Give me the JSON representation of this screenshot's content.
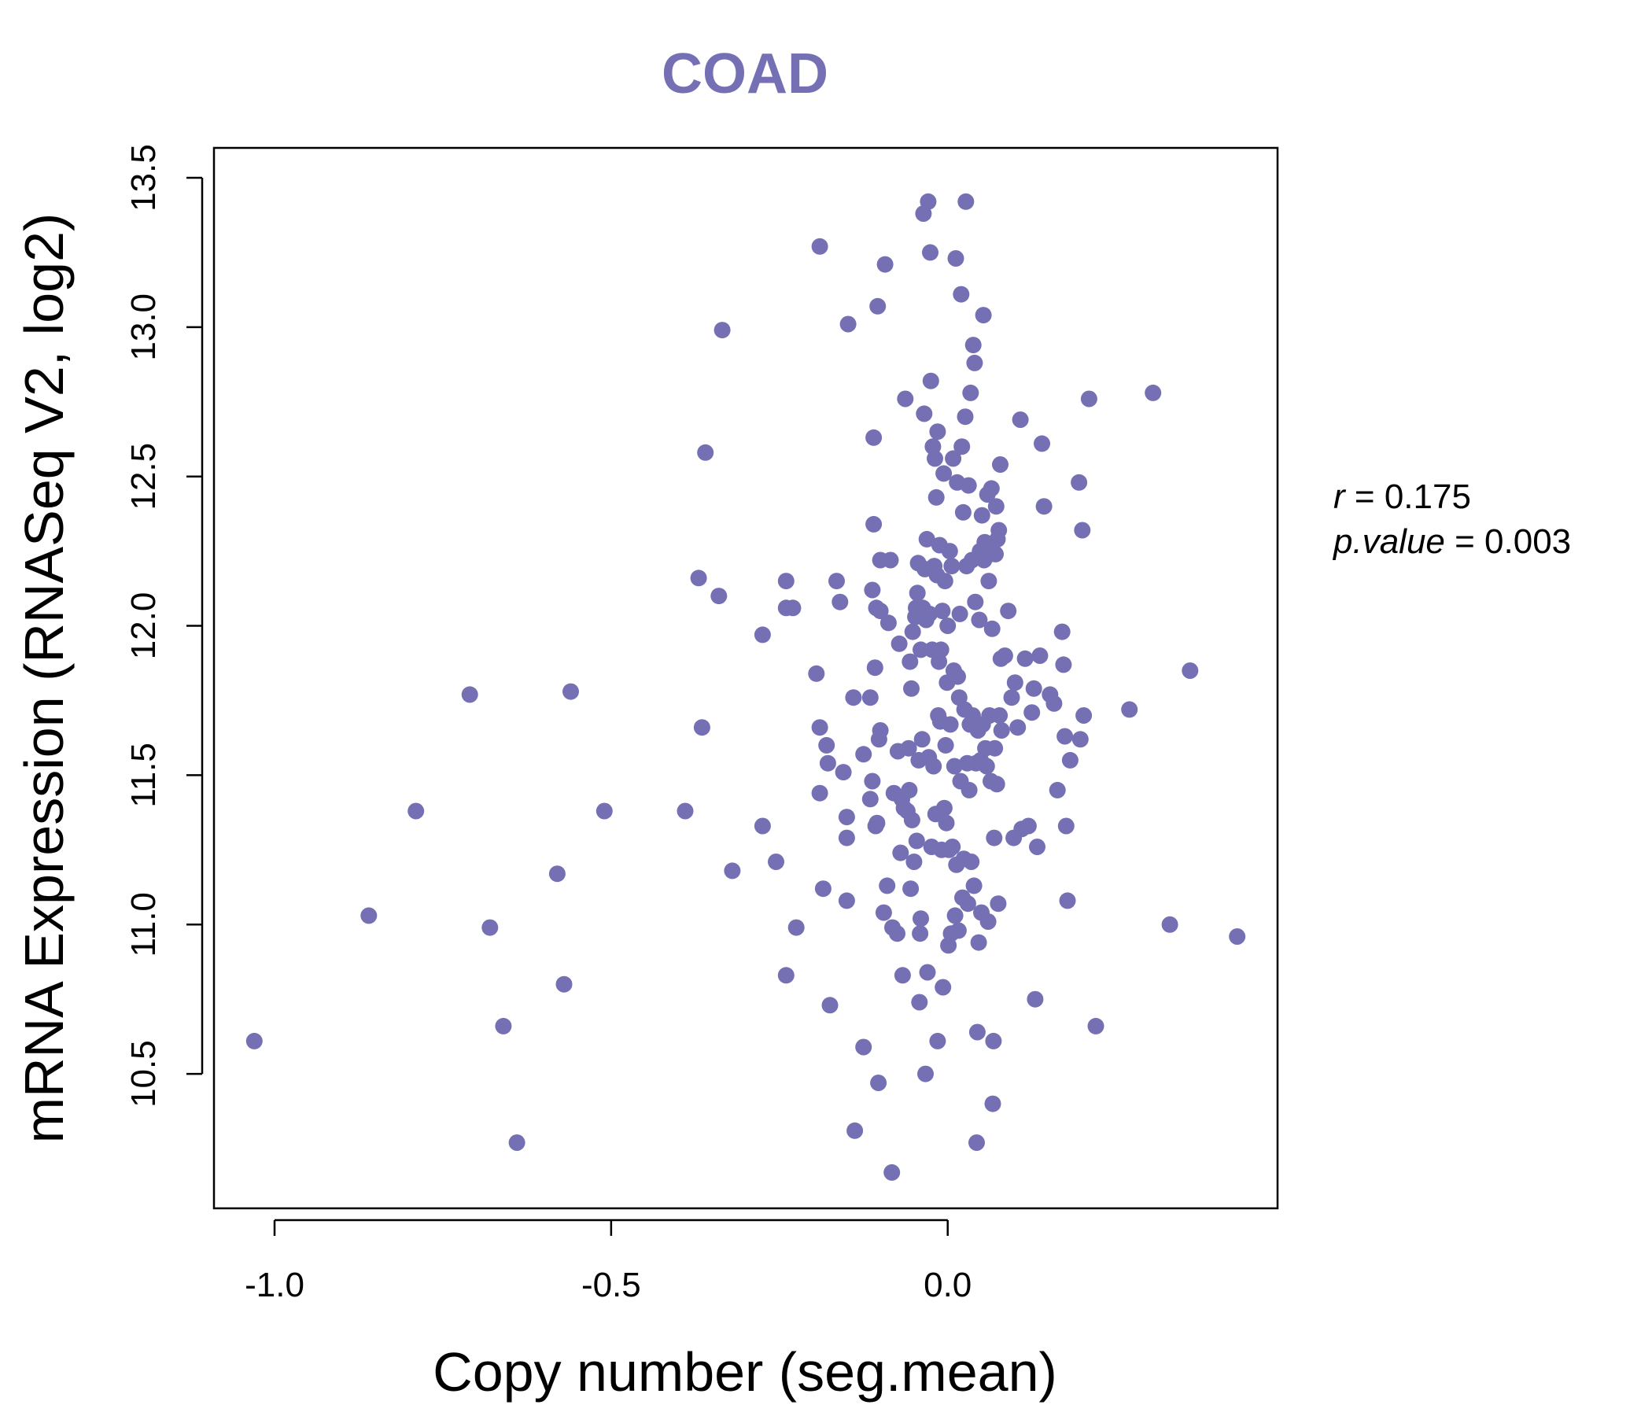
{
  "chart_data": {
    "type": "scatter",
    "title": "COAD",
    "xlabel": "Copy number (seg.mean)",
    "ylabel": "mRNA Expression (RNASeq V2, log2)",
    "xlim": [
      -1.09,
      0.49
    ],
    "ylim": [
      10.05,
      13.6
    ],
    "x_ticks": [
      -1.0,
      -0.5,
      0.0
    ],
    "x_tick_labels": [
      "-1.0",
      "-0.5",
      "0.0"
    ],
    "y_ticks": [
      10.5,
      11.0,
      11.5,
      12.0,
      12.5,
      13.0,
      13.5
    ],
    "y_tick_labels": [
      "10.5",
      "11.0",
      "11.5",
      "12.0",
      "12.5",
      "13.0",
      "13.5"
    ],
    "grid": false,
    "point_color": "#7570B3",
    "stats": {
      "r_label": "r",
      "r_value": "0.175",
      "p_label": "p.value",
      "p_value": "0.003"
    },
    "points": [
      [
        -1.03,
        10.61
      ],
      [
        -0.86,
        11.03
      ],
      [
        -0.79,
        11.38
      ],
      [
        -0.71,
        11.77
      ],
      [
        -0.68,
        10.99
      ],
      [
        -0.66,
        10.66
      ],
      [
        -0.64,
        10.27
      ],
      [
        -0.58,
        11.17
      ],
      [
        -0.57,
        10.8
      ],
      [
        -0.56,
        11.78
      ],
      [
        -0.51,
        11.38
      ],
      [
        -0.39,
        11.38
      ],
      [
        -0.37,
        12.16
      ],
      [
        -0.365,
        11.66
      ],
      [
        -0.36,
        12.58
      ],
      [
        -0.34,
        12.1
      ],
      [
        -0.335,
        12.99
      ],
      [
        -0.32,
        11.18
      ],
      [
        -0.275,
        11.33
      ],
      [
        -0.275,
        11.97
      ],
      [
        -0.255,
        11.21
      ],
      [
        -0.24,
        10.83
      ],
      [
        -0.24,
        12.06
      ],
      [
        -0.24,
        12.15
      ],
      [
        -0.23,
        12.06
      ],
      [
        -0.225,
        10.99
      ],
      [
        -0.195,
        11.84
      ],
      [
        -0.19,
        11.66
      ],
      [
        -0.19,
        11.44
      ],
      [
        -0.19,
        13.27
      ],
      [
        -0.185,
        11.12
      ],
      [
        -0.18,
        11.6
      ],
      [
        -0.178,
        11.54
      ],
      [
        -0.175,
        10.73
      ],
      [
        -0.165,
        12.15
      ],
      [
        -0.16,
        12.08
      ],
      [
        -0.155,
        11.51
      ],
      [
        -0.15,
        11.36
      ],
      [
        -0.15,
        11.29
      ],
      [
        -0.15,
        11.08
      ],
      [
        -0.148,
        13.01
      ],
      [
        -0.14,
        11.76
      ],
      [
        -0.138,
        10.31
      ],
      [
        -0.125,
        11.57
      ],
      [
        -0.125,
        10.59
      ],
      [
        -0.115,
        11.76
      ],
      [
        -0.115,
        11.42
      ],
      [
        -0.112,
        11.48
      ],
      [
        -0.112,
        12.12
      ],
      [
        -0.11,
        12.34
      ],
      [
        -0.11,
        12.63
      ],
      [
        -0.108,
        11.86
      ],
      [
        -0.107,
        11.33
      ],
      [
        -0.106,
        12.06
      ],
      [
        -0.105,
        11.34
      ],
      [
        -0.104,
        13.07
      ],
      [
        -0.103,
        10.47
      ],
      [
        -0.102,
        11.62
      ],
      [
        -0.1,
        12.05
      ],
      [
        -0.1,
        12.22
      ],
      [
        -0.1,
        11.65
      ],
      [
        -0.095,
        11.04
      ],
      [
        -0.093,
        13.21
      ],
      [
        -0.09,
        11.13
      ],
      [
        -0.088,
        12.01
      ],
      [
        -0.085,
        12.22
      ],
      [
        -0.083,
        10.17
      ],
      [
        -0.082,
        10.99
      ],
      [
        -0.08,
        11.44
      ],
      [
        -0.075,
        10.97
      ],
      [
        -0.074,
        11.58
      ],
      [
        -0.072,
        11.94
      ],
      [
        -0.07,
        11.24
      ],
      [
        -0.068,
        11.42
      ],
      [
        -0.067,
        10.83
      ],
      [
        -0.065,
        11.39
      ],
      [
        -0.063,
        12.76
      ],
      [
        -0.06,
        11.38
      ],
      [
        -0.058,
        11.59
      ],
      [
        -0.057,
        11.45
      ],
      [
        -0.056,
        11.88
      ],
      [
        -0.055,
        11.12
      ],
      [
        -0.054,
        11.79
      ],
      [
        -0.053,
        11.35
      ],
      [
        -0.052,
        11.98
      ],
      [
        -0.05,
        11.21
      ],
      [
        -0.048,
        12.03
      ],
      [
        -0.047,
        12.06
      ],
      [
        -0.046,
        11.28
      ],
      [
        -0.045,
        12.11
      ],
      [
        -0.044,
        12.21
      ],
      [
        -0.043,
        11.55
      ],
      [
        -0.042,
        10.74
      ],
      [
        -0.041,
        10.97
      ],
      [
        -0.04,
        11.02
      ],
      [
        -0.04,
        11.92
      ],
      [
        -0.038,
        11.62
      ],
      [
        -0.037,
        12.06
      ],
      [
        -0.036,
        13.38
      ],
      [
        -0.035,
        12.71
      ],
      [
        -0.034,
        12.19
      ],
      [
        -0.033,
        10.5
      ],
      [
        -0.032,
        12.02
      ],
      [
        -0.031,
        12.29
      ],
      [
        -0.03,
        10.84
      ],
      [
        -0.029,
        13.42
      ],
      [
        -0.028,
        11.56
      ],
      [
        -0.027,
        12.04
      ],
      [
        -0.026,
        13.25
      ],
      [
        -0.025,
        12.82
      ],
      [
        -0.024,
        11.26
      ],
      [
        -0.023,
        11.92
      ],
      [
        -0.022,
        12.6
      ],
      [
        -0.021,
        11.53
      ],
      [
        -0.02,
        12.2
      ],
      [
        -0.019,
        12.56
      ],
      [
        -0.018,
        11.37
      ],
      [
        -0.017,
        12.43
      ],
      [
        -0.016,
        12.17
      ],
      [
        -0.015,
        12.65
      ],
      [
        -0.015,
        10.61
      ],
      [
        -0.014,
        11.7
      ],
      [
        -0.013,
        11.88
      ],
      [
        -0.012,
        12.27
      ],
      [
        -0.011,
        11.68
      ],
      [
        -0.01,
        11.92
      ],
      [
        -0.009,
        11.25
      ],
      [
        -0.008,
        12.05
      ],
      [
        -0.007,
        10.79
      ],
      [
        -0.006,
        12.51
      ],
      [
        -0.005,
        11.39
      ],
      [
        -0.004,
        12.15
      ],
      [
        -0.003,
        11.6
      ],
      [
        -0.002,
        11.34
      ],
      [
        -0.001,
        11.81
      ],
      [
        0.0,
        12.0
      ],
      [
        0.001,
        10.93
      ],
      [
        0.002,
        11.25
      ],
      [
        0.003,
        12.25
      ],
      [
        0.004,
        11.67
      ],
      [
        0.005,
        10.97
      ],
      [
        0.006,
        12.2
      ],
      [
        0.007,
        11.26
      ],
      [
        0.008,
        12.56
      ],
      [
        0.009,
        11.85
      ],
      [
        0.01,
        11.53
      ],
      [
        0.011,
        11.03
      ],
      [
        0.012,
        13.23
      ],
      [
        0.013,
        11.2
      ],
      [
        0.014,
        12.48
      ],
      [
        0.015,
        11.83
      ],
      [
        0.016,
        10.98
      ],
      [
        0.017,
        11.76
      ],
      [
        0.018,
        12.04
      ],
      [
        0.019,
        11.48
      ],
      [
        0.02,
        13.11
      ],
      [
        0.021,
        12.6
      ],
      [
        0.022,
        11.09
      ],
      [
        0.023,
        12.38
      ],
      [
        0.024,
        11.22
      ],
      [
        0.025,
        11.72
      ],
      [
        0.026,
        12.7
      ],
      [
        0.027,
        13.42
      ],
      [
        0.028,
        12.2
      ],
      [
        0.029,
        11.54
      ],
      [
        0.03,
        11.07
      ],
      [
        0.031,
        12.47
      ],
      [
        0.032,
        11.45
      ],
      [
        0.033,
        11.67
      ],
      [
        0.034,
        12.78
      ],
      [
        0.035,
        11.21
      ],
      [
        0.036,
        12.22
      ],
      [
        0.037,
        11.7
      ],
      [
        0.038,
        12.94
      ],
      [
        0.039,
        11.13
      ],
      [
        0.04,
        12.88
      ],
      [
        0.041,
        12.08
      ],
      [
        0.042,
        11.54
      ],
      [
        0.043,
        10.27
      ],
      [
        0.044,
        10.64
      ],
      [
        0.045,
        11.65
      ],
      [
        0.046,
        10.94
      ],
      [
        0.047,
        12.02
      ],
      [
        0.048,
        12.25
      ],
      [
        0.049,
        11.55
      ],
      [
        0.05,
        11.04
      ],
      [
        0.051,
        12.37
      ],
      [
        0.052,
        11.67
      ],
      [
        0.053,
        13.04
      ],
      [
        0.054,
        12.22
      ],
      [
        0.055,
        12.28
      ],
      [
        0.056,
        11.59
      ],
      [
        0.057,
        12.26
      ],
      [
        0.058,
        11.53
      ],
      [
        0.059,
        12.44
      ],
      [
        0.06,
        11.01
      ],
      [
        0.061,
        12.15
      ],
      [
        0.062,
        11.7
      ],
      [
        0.063,
        12.24
      ],
      [
        0.064,
        11.48
      ],
      [
        0.065,
        12.46
      ],
      [
        0.066,
        11.99
      ],
      [
        0.067,
        10.4
      ],
      [
        0.068,
        10.61
      ],
      [
        0.069,
        11.29
      ],
      [
        0.07,
        11.59
      ],
      [
        0.071,
        12.24
      ],
      [
        0.072,
        12.4
      ],
      [
        0.073,
        11.47
      ],
      [
        0.074,
        12.29
      ],
      [
        0.075,
        11.07
      ],
      [
        0.076,
        12.32
      ],
      [
        0.077,
        11.7
      ],
      [
        0.078,
        12.54
      ],
      [
        0.079,
        11.89
      ],
      [
        0.08,
        11.65
      ],
      [
        0.085,
        11.9
      ],
      [
        0.09,
        12.05
      ],
      [
        0.095,
        11.76
      ],
      [
        0.098,
        11.29
      ],
      [
        0.1,
        11.81
      ],
      [
        0.104,
        11.66
      ],
      [
        0.108,
        12.69
      ],
      [
        0.11,
        11.32
      ],
      [
        0.115,
        11.89
      ],
      [
        0.12,
        11.33
      ],
      [
        0.125,
        11.71
      ],
      [
        0.128,
        11.79
      ],
      [
        0.13,
        10.75
      ],
      [
        0.133,
        11.26
      ],
      [
        0.137,
        11.9
      ],
      [
        0.14,
        12.61
      ],
      [
        0.143,
        12.4
      ],
      [
        0.152,
        11.77
      ],
      [
        0.158,
        11.74
      ],
      [
        0.163,
        11.45
      ],
      [
        0.17,
        11.98
      ],
      [
        0.172,
        11.87
      ],
      [
        0.174,
        11.63
      ],
      [
        0.176,
        11.33
      ],
      [
        0.178,
        11.08
      ],
      [
        0.182,
        11.55
      ],
      [
        0.195,
        12.48
      ],
      [
        0.197,
        11.62
      ],
      [
        0.2,
        12.32
      ],
      [
        0.202,
        11.7
      ],
      [
        0.21,
        12.76
      ],
      [
        0.22,
        10.66
      ],
      [
        0.27,
        11.72
      ],
      [
        0.305,
        12.78
      ],
      [
        0.33,
        11.0
      ],
      [
        0.36,
        11.85
      ],
      [
        0.43,
        10.96
      ]
    ]
  }
}
